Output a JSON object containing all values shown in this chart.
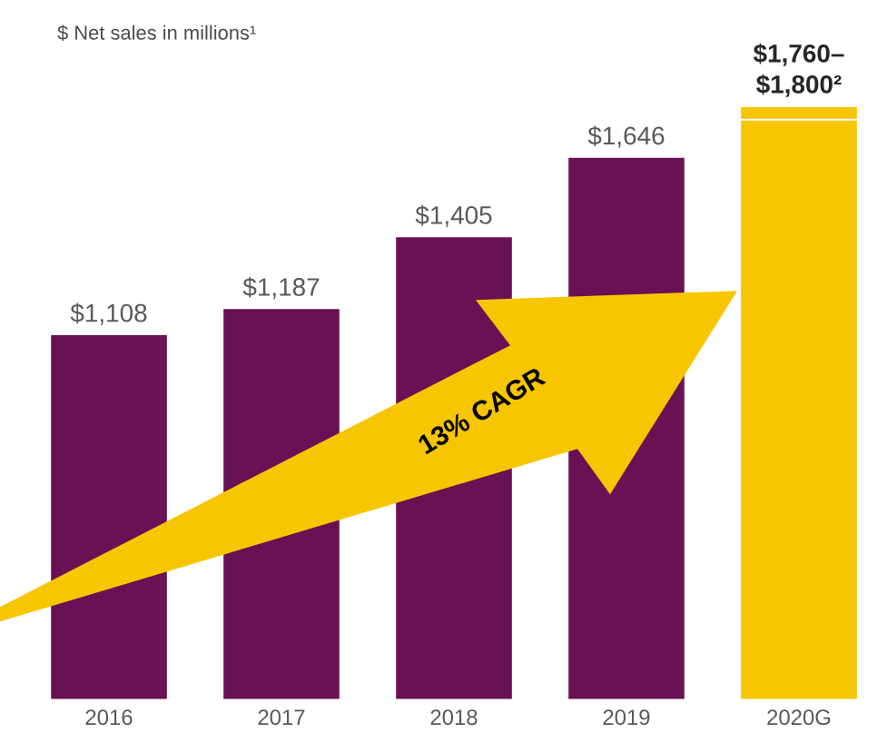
{
  "chart_data": {
    "type": "bar",
    "stacked": true,
    "title": "$ Net sales in millions¹",
    "categories": [
      "2016",
      "2017",
      "2018",
      "2019",
      "2020G"
    ],
    "series": [
      {
        "colors": [
          "#6a1155",
          "#6a1155",
          "#6a1155",
          "#6a1155",
          "#f7c600"
        ],
        "values": [
          1108,
          1187,
          1405,
          1646,
          1760
        ],
        "value_labels": [
          "$1,108",
          "$1,187",
          "$1,405",
          "$1,646",
          "$1,760–"
        ]
      },
      {
        "colors": [
          null,
          null,
          null,
          null,
          "#f7c600"
        ],
        "values": [
          null,
          null,
          null,
          null,
          40
        ]
      }
    ],
    "totals": [
      null,
      null,
      null,
      null,
      "$1,800²"
    ],
    "tick_labels": "x",
    "annotations": [
      "13% CAGR"
    ]
  }
}
